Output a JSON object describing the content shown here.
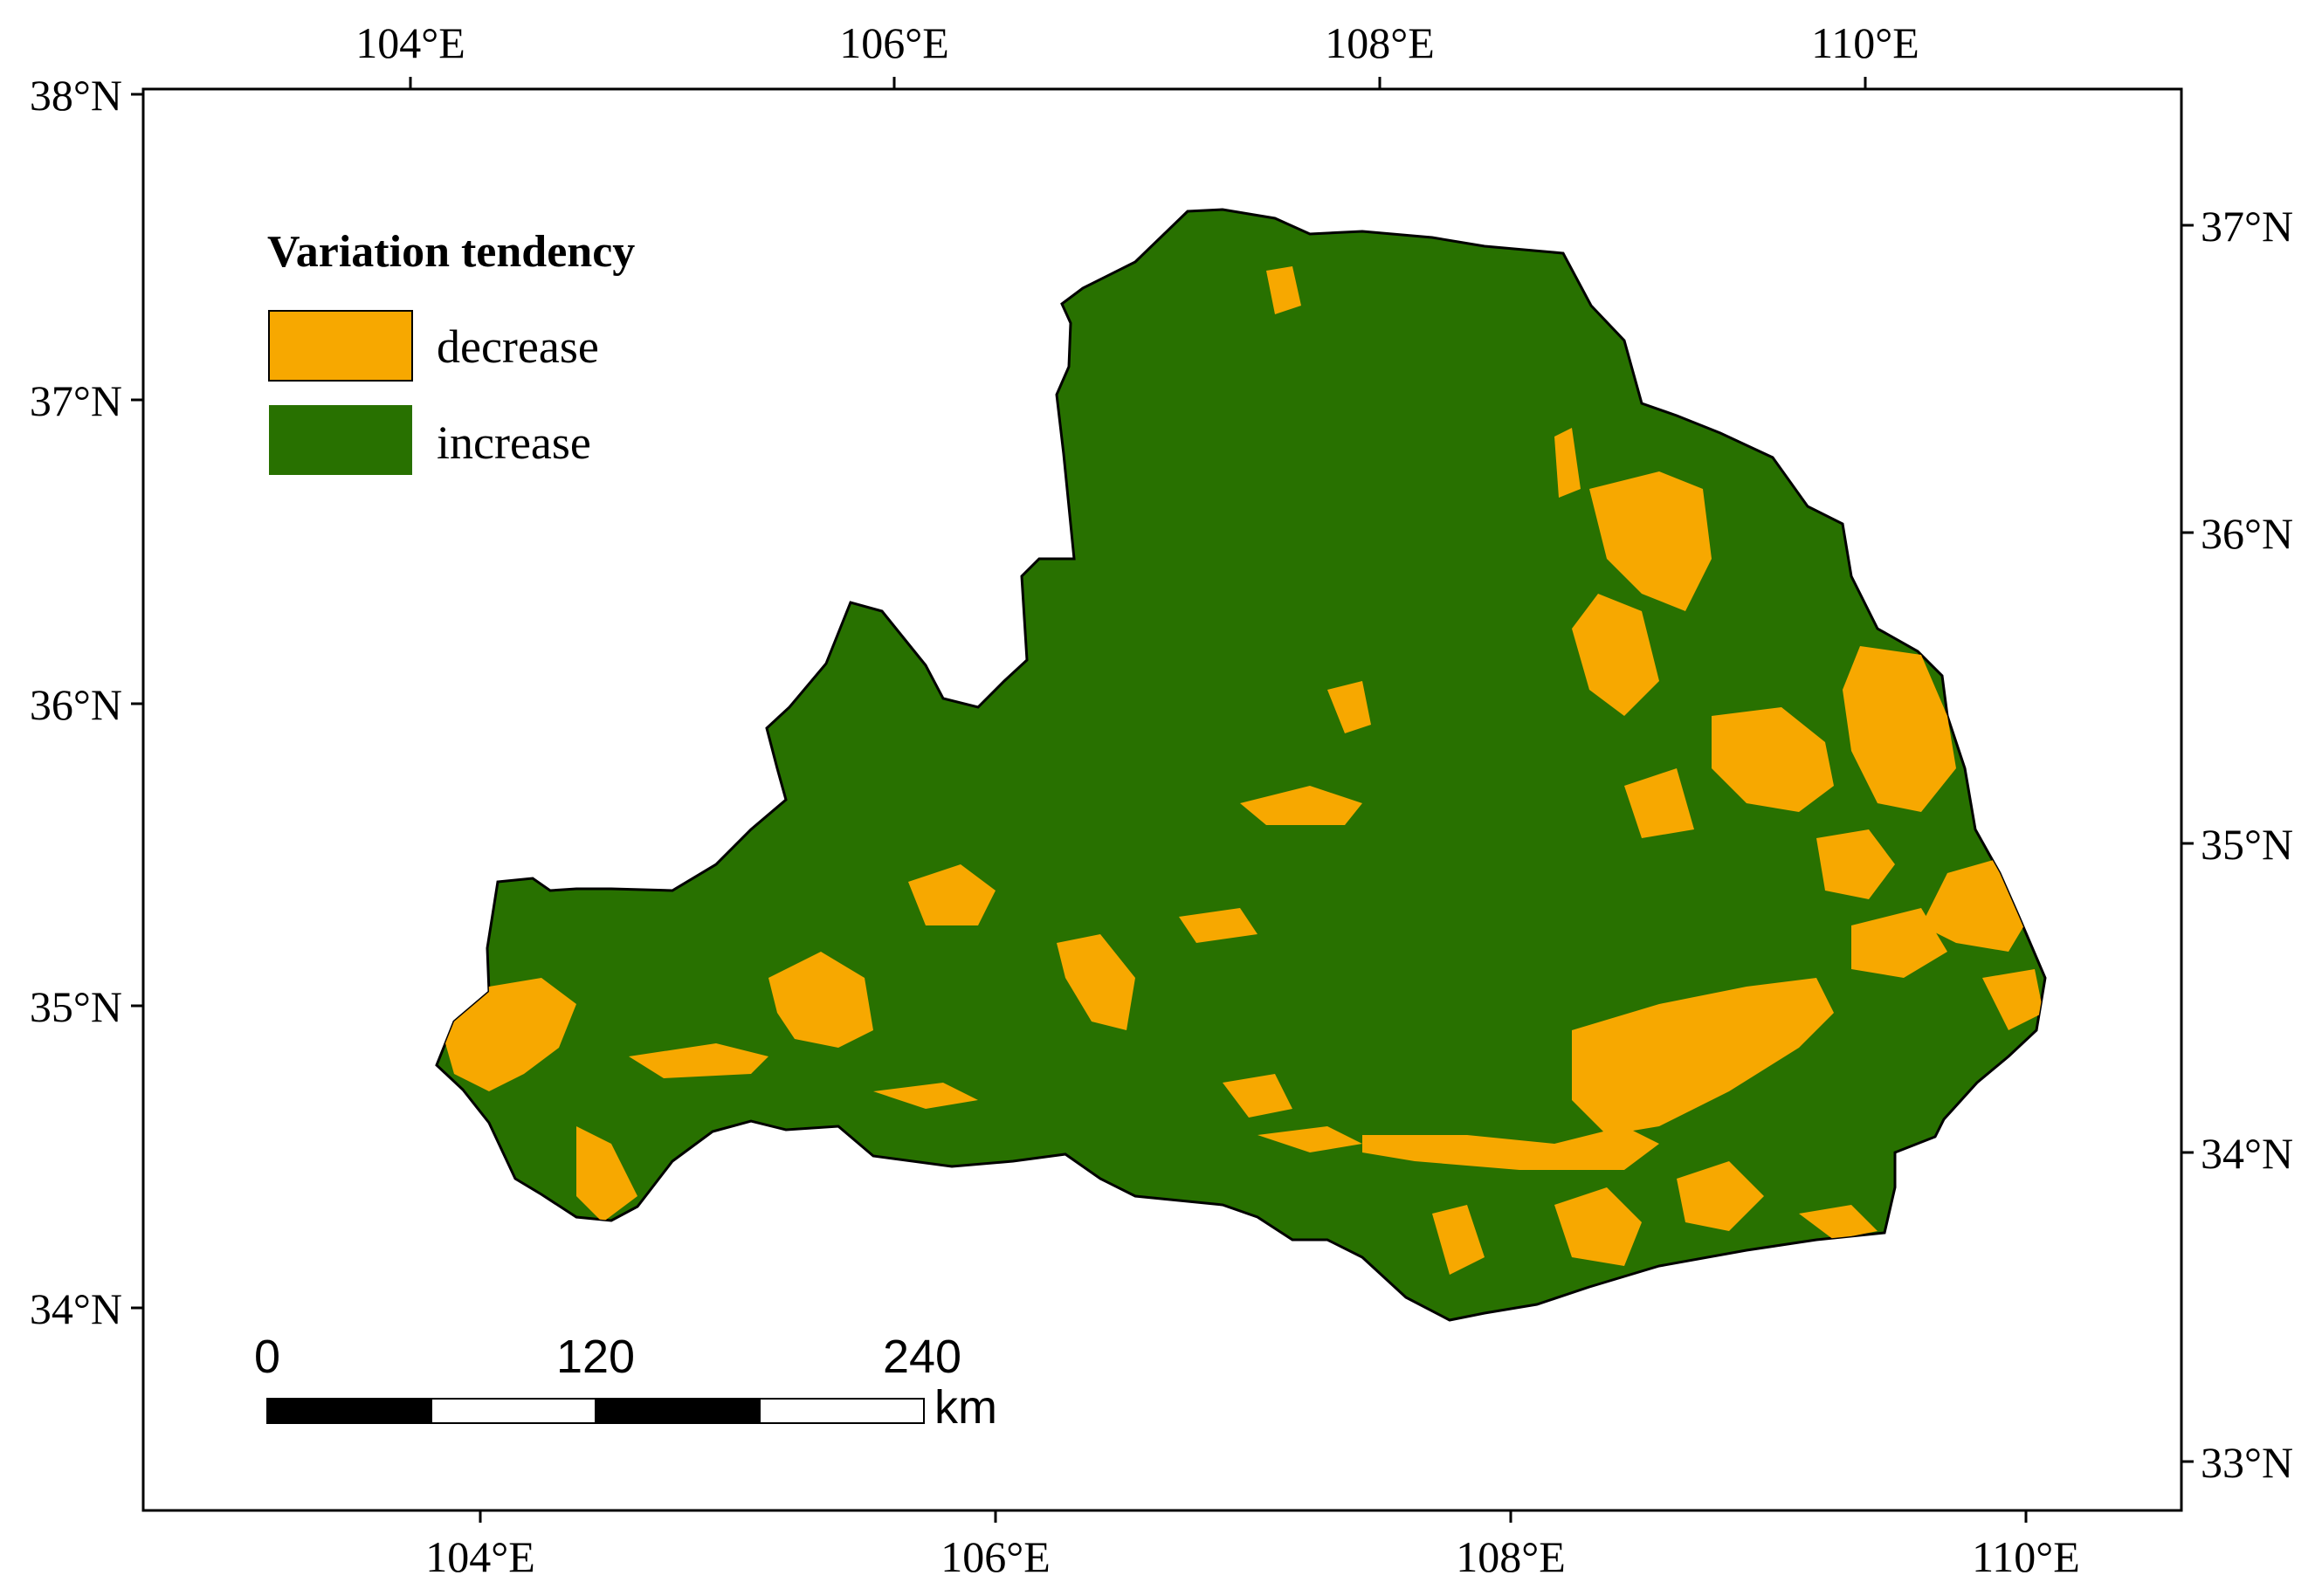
{
  "map": {
    "top_axis_labels": [
      "104°E",
      "106°E",
      "108°E",
      "110°E"
    ],
    "bottom_axis_labels": [
      "104°E",
      "106°E",
      "108°E",
      "110°E"
    ],
    "left_axis_labels": [
      "38°N",
      "37°N",
      "36°N",
      "35°N",
      "34°N"
    ],
    "right_axis_labels": [
      "37°N",
      "36°N",
      "35°N",
      "34°N",
      "33°N"
    ]
  },
  "legend": {
    "title": "Variation tendency",
    "items": [
      {
        "label": "decrease",
        "color": "#F7A800"
      },
      {
        "label": "increase",
        "color": "#287100"
      }
    ]
  },
  "scale_bar": {
    "ticks": [
      "0",
      "120",
      "240"
    ],
    "unit": "km"
  },
  "colors": {
    "decrease": "#F7A800",
    "increase": "#287100",
    "outline": "#000000"
  }
}
